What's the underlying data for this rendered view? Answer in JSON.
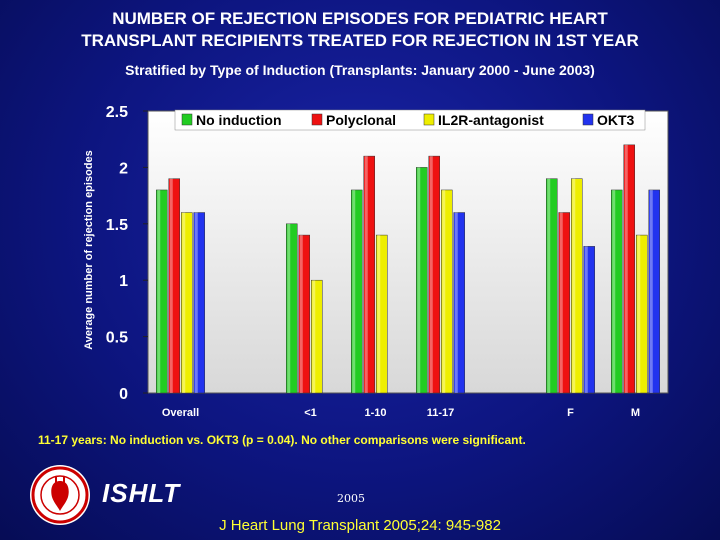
{
  "slide": {
    "title": "NUMBER OF REJECTION EPISODES FOR PEDIATRIC HEART\nTRANSPLANT RECIPIENTS TREATED FOR REJECTION IN 1ST YEAR",
    "subtitle": "Stratified by Type of Induction  (Transplants: January 2000 - June 2003)",
    "note": "11-17 years: No induction vs. OKT3 (p = 0.04).  No other comparisons were significant.",
    "org": "ISHLT",
    "year": "2005",
    "citation": "J Heart Lung Transplant 2005;24: 945-982",
    "logo_icon": "ishlt-seal-icon"
  },
  "chart_data": {
    "type": "bar",
    "title": "",
    "xlabel": "",
    "ylabel": "Average number of rejection episodes",
    "ylim": [
      0,
      2.5
    ],
    "yticks": [
      "0",
      "0.5",
      "1",
      "1.5",
      "2",
      "2.5"
    ],
    "categories": [
      "Overall",
      "",
      "<1",
      "1-10",
      "11-17",
      "",
      "F",
      "M"
    ],
    "legend_position": "top",
    "grid": false,
    "series": [
      {
        "name": "No induction",
        "color": "#22cc22",
        "values": [
          1.8,
          null,
          1.5,
          1.8,
          2.0,
          null,
          1.9,
          1.8
        ]
      },
      {
        "name": "Polyclonal",
        "color": "#ee1111",
        "values": [
          1.9,
          null,
          1.4,
          2.1,
          2.1,
          null,
          1.6,
          2.2
        ]
      },
      {
        "name": "IL2R-antagonist",
        "color": "#eeee00",
        "values": [
          1.6,
          null,
          1.0,
          1.4,
          1.8,
          null,
          1.9,
          1.4
        ]
      },
      {
        "name": "OKT3",
        "color": "#2233ee",
        "values": [
          1.6,
          null,
          null,
          null,
          1.6,
          null,
          1.3,
          1.8
        ]
      }
    ]
  }
}
